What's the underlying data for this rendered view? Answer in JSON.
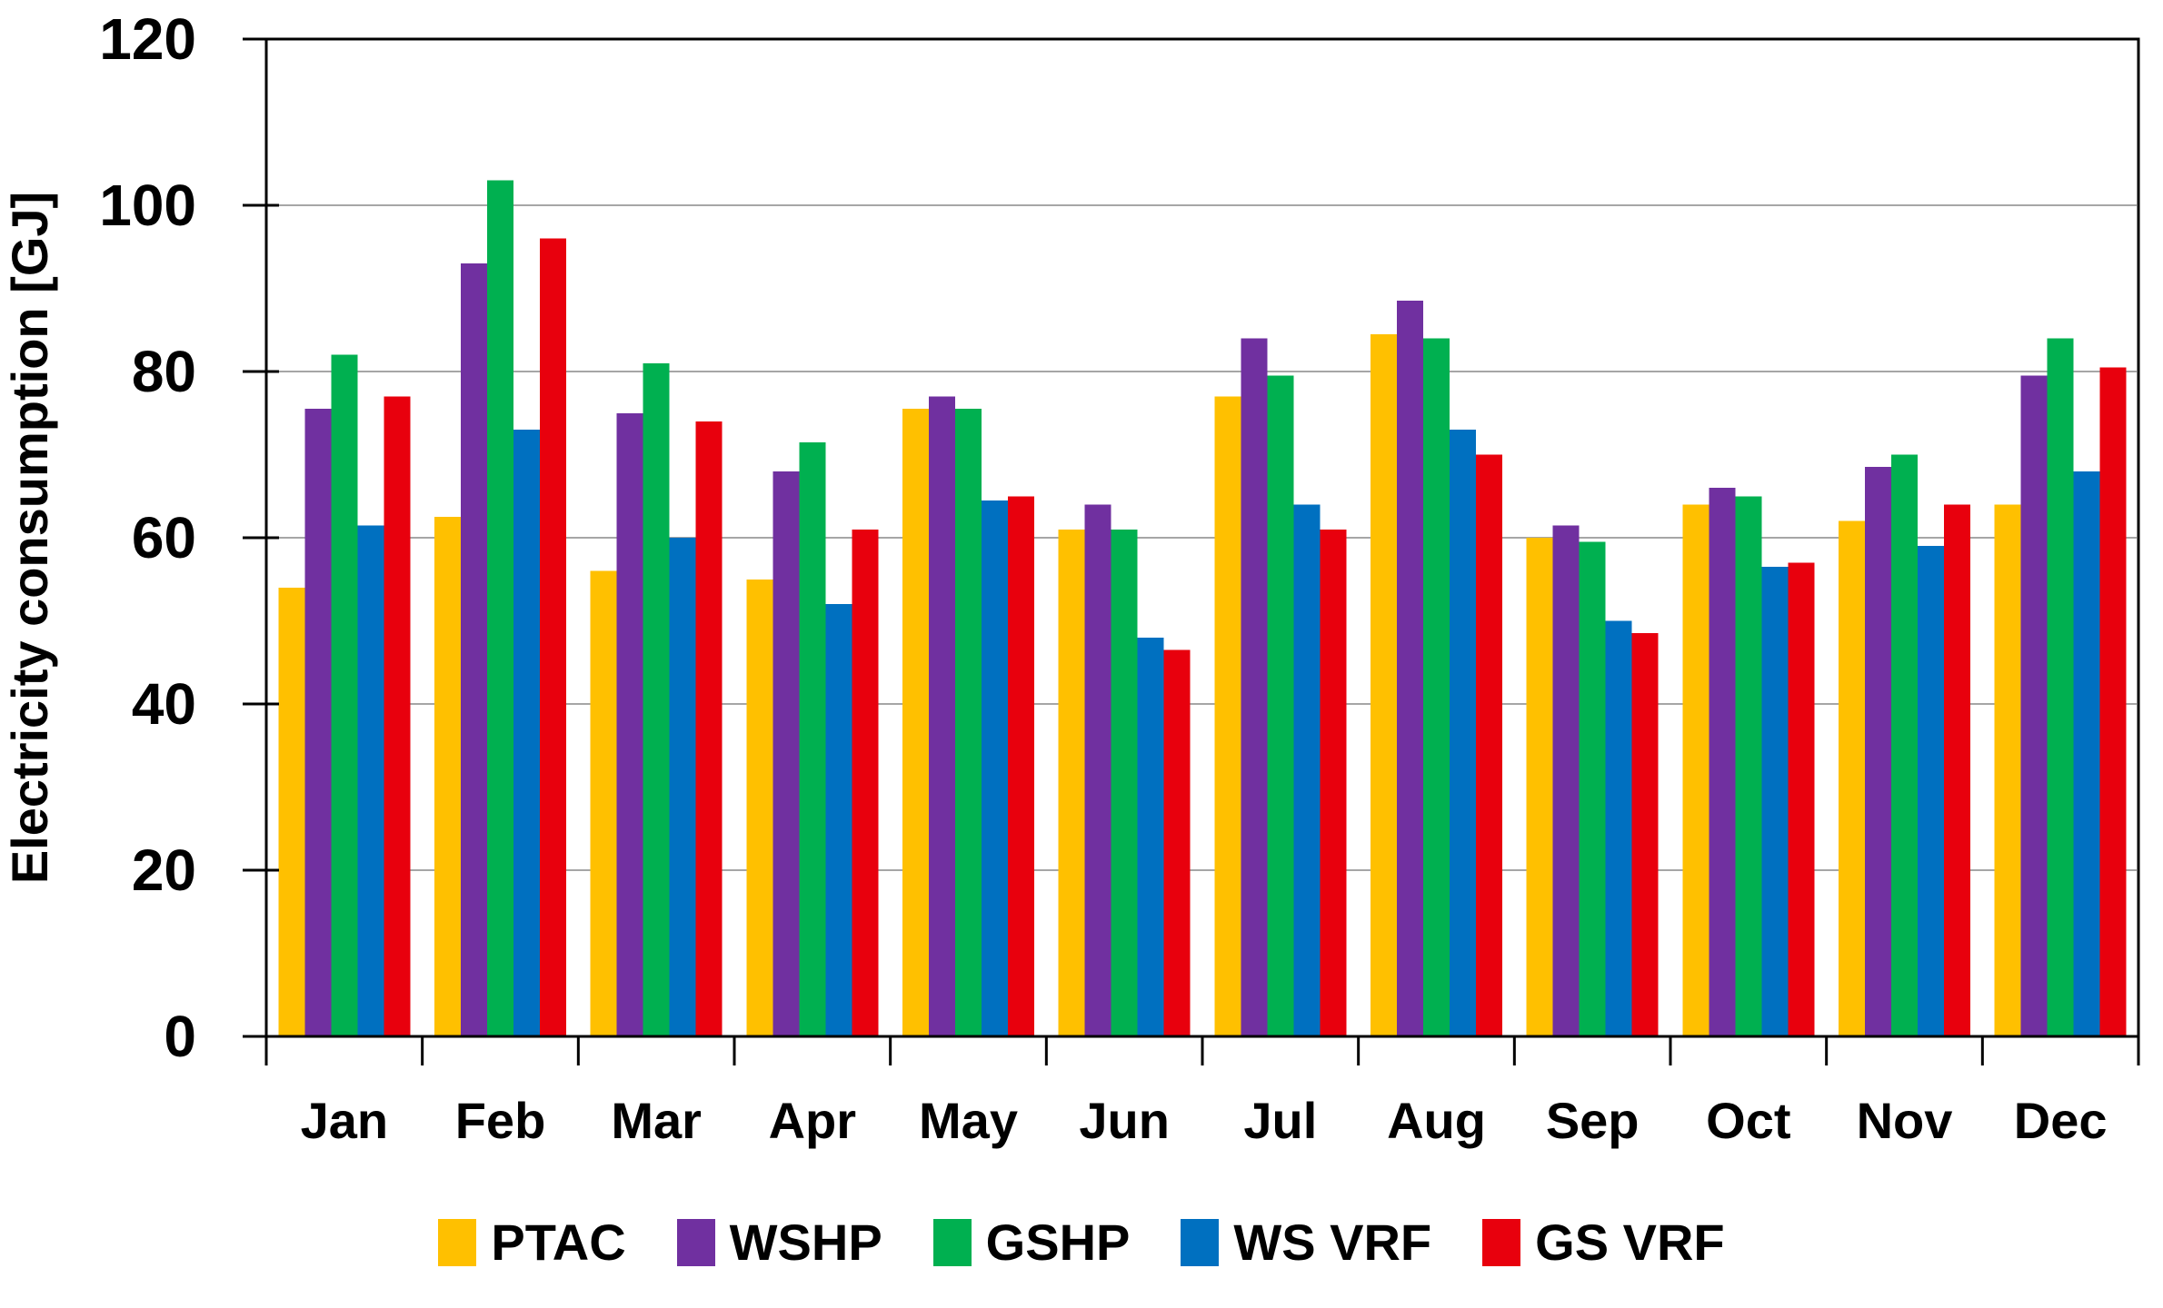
{
  "chart_data": {
    "type": "bar",
    "title": "",
    "xlabel": "",
    "ylabel": "Electricity consumption [GJ]",
    "ylim": [
      0,
      120
    ],
    "yticks": [
      0,
      20,
      40,
      60,
      80,
      100,
      120
    ],
    "grid": true,
    "legend_position": "bottom",
    "categories": [
      "Jan",
      "Feb",
      "Mar",
      "Apr",
      "May",
      "Jun",
      "Jul",
      "Aug",
      "Sep",
      "Oct",
      "Nov",
      "Dec"
    ],
    "series": [
      {
        "name": "PTAC",
        "color": "#FFC000",
        "values": [
          54,
          62.5,
          56,
          55,
          75.5,
          61,
          77,
          84.5,
          60,
          64,
          62,
          64
        ]
      },
      {
        "name": "WSHP",
        "color": "#7030A0",
        "values": [
          75.5,
          93,
          75,
          68,
          77,
          64,
          84,
          88.5,
          61.5,
          66,
          68.5,
          79.5
        ]
      },
      {
        "name": "GSHP",
        "color": "#00B050",
        "values": [
          82,
          103,
          81,
          71.5,
          75.5,
          61,
          79.5,
          84,
          59.5,
          65,
          70,
          84
        ]
      },
      {
        "name": "WS VRF",
        "color": "#0070C0",
        "values": [
          61.5,
          73,
          60,
          52,
          64.5,
          48,
          64,
          73,
          50,
          56.5,
          59,
          68
        ]
      },
      {
        "name": "GS VRF",
        "color": "#E8000D",
        "values": [
          77,
          96,
          74,
          61,
          65,
          46.5,
          61,
          70,
          48.5,
          57,
          64,
          80.5
        ]
      }
    ]
  },
  "colors": {
    "gridline": "#A6A6A6",
    "axis": "#000000",
    "background": "#FFFFFF",
    "text": "#000000"
  }
}
